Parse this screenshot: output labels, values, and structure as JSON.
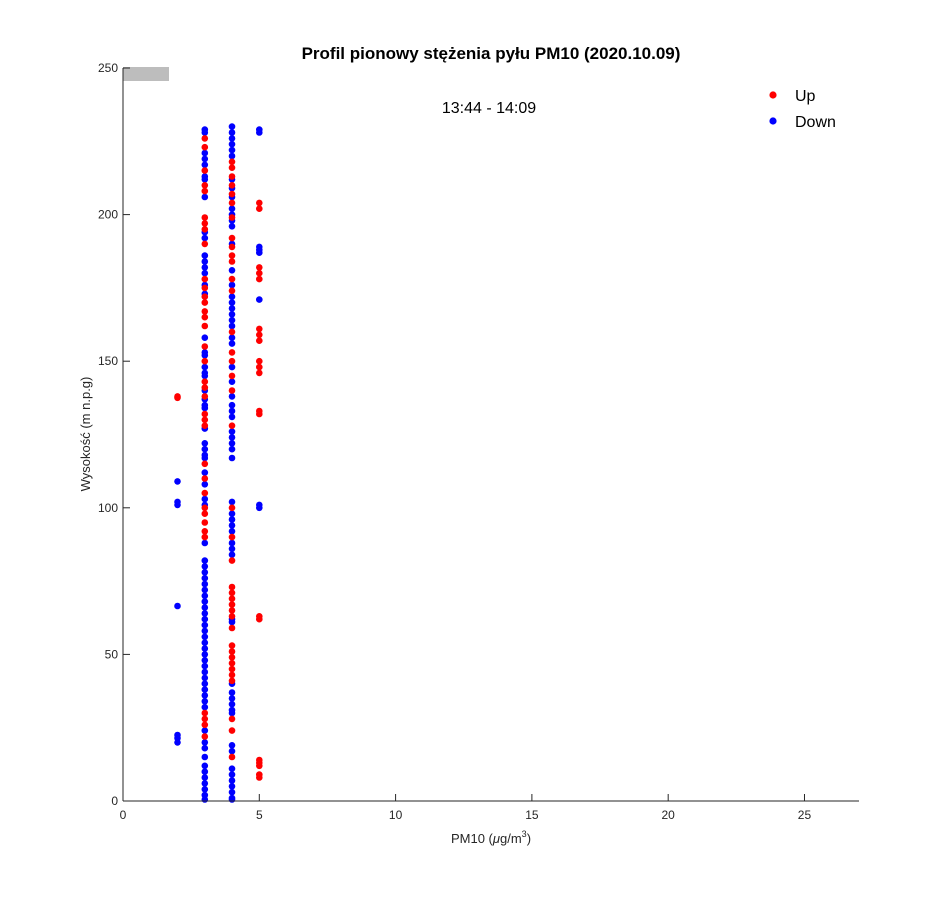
{
  "chart_data": {
    "type": "scatter",
    "title": "Profil pionowy stężenia pyłu PM10 (2020.10.09)",
    "xlabel": "PM10 (",
    "xlabel_mu": "μ",
    "xlabel_unit": "g/m",
    "xlabel_exp": "3",
    "xlabel_close": ")",
    "ylabel": "Wysokość (m n.p.g)",
    "xlim": [
      0,
      27
    ],
    "ylim": [
      0,
      250
    ],
    "xticks": [
      0,
      5,
      10,
      15,
      20,
      25
    ],
    "yticks": [
      0,
      50,
      100,
      150,
      200,
      250
    ],
    "grid": false,
    "legend_position": "top-right",
    "annotation": "13:44 - 14:09",
    "series": [
      {
        "name": "Up",
        "color": "#ff0000",
        "points": [
          [
            2,
            138
          ],
          [
            2,
            137.5
          ],
          [
            3,
            226
          ],
          [
            3,
            223
          ],
          [
            3,
            215
          ],
          [
            3,
            210
          ],
          [
            3,
            208
          ],
          [
            3,
            199
          ],
          [
            3,
            197
          ],
          [
            3,
            195
          ],
          [
            3,
            190
          ],
          [
            3,
            178
          ],
          [
            3,
            175
          ],
          [
            3,
            172
          ],
          [
            3,
            170
          ],
          [
            3,
            167
          ],
          [
            3,
            165
          ],
          [
            3,
            162
          ],
          [
            3,
            155
          ],
          [
            3,
            150
          ],
          [
            3,
            143
          ],
          [
            3,
            141
          ],
          [
            3,
            138
          ],
          [
            3,
            132
          ],
          [
            3,
            130
          ],
          [
            3,
            128
          ],
          [
            3,
            115
          ],
          [
            3,
            110
          ],
          [
            3,
            105
          ],
          [
            3,
            100
          ],
          [
            3,
            98
          ],
          [
            3,
            95
          ],
          [
            3,
            92
          ],
          [
            3,
            90
          ],
          [
            3,
            30
          ],
          [
            3,
            28
          ],
          [
            3,
            26
          ],
          [
            3,
            22
          ],
          [
            4,
            218
          ],
          [
            4,
            216
          ],
          [
            4,
            213
          ],
          [
            4,
            210
          ],
          [
            4,
            207
          ],
          [
            4,
            204
          ],
          [
            4,
            199
          ],
          [
            4,
            192
          ],
          [
            4,
            189
          ],
          [
            4,
            186
          ],
          [
            4,
            184
          ],
          [
            4,
            178
          ],
          [
            4,
            174
          ],
          [
            4,
            160
          ],
          [
            4,
            153
          ],
          [
            4,
            150
          ],
          [
            4,
            145
          ],
          [
            4,
            140
          ],
          [
            4,
            128
          ],
          [
            4,
            100
          ],
          [
            4,
            90
          ],
          [
            4,
            82
          ],
          [
            4,
            73
          ],
          [
            4,
            71
          ],
          [
            4,
            69
          ],
          [
            4,
            67
          ],
          [
            4,
            65
          ],
          [
            4,
            63
          ],
          [
            4,
            59
          ],
          [
            4,
            53
          ],
          [
            4,
            51
          ],
          [
            4,
            49
          ],
          [
            4,
            47
          ],
          [
            4,
            45
          ],
          [
            4,
            43
          ],
          [
            4,
            41
          ],
          [
            4,
            28
          ],
          [
            4,
            24
          ],
          [
            4,
            15
          ],
          [
            5,
            204
          ],
          [
            5,
            202
          ],
          [
            5,
            182
          ],
          [
            5,
            180
          ],
          [
            5,
            178
          ],
          [
            5,
            161
          ],
          [
            5,
            159
          ],
          [
            5,
            157
          ],
          [
            5,
            150
          ],
          [
            5,
            148
          ],
          [
            5,
            146
          ],
          [
            5,
            133
          ],
          [
            5,
            132
          ],
          [
            5,
            63
          ],
          [
            5,
            62
          ],
          [
            5,
            14
          ],
          [
            5,
            13
          ],
          [
            5,
            12
          ],
          [
            5,
            9
          ],
          [
            5,
            8
          ]
        ]
      },
      {
        "name": "Down",
        "color": "#0000ff",
        "points": [
          [
            2,
            109
          ],
          [
            2,
            102
          ],
          [
            2,
            101
          ],
          [
            2,
            66.5
          ],
          [
            2,
            22.5
          ],
          [
            2,
            21.5
          ],
          [
            2,
            20
          ],
          [
            3,
            229
          ],
          [
            3,
            228
          ],
          [
            3,
            221
          ],
          [
            3,
            219
          ],
          [
            3,
            217
          ],
          [
            3,
            213
          ],
          [
            3,
            212
          ],
          [
            3,
            206
          ],
          [
            3,
            194
          ],
          [
            3,
            192
          ],
          [
            3,
            186
          ],
          [
            3,
            184
          ],
          [
            3,
            182
          ],
          [
            3,
            180
          ],
          [
            3,
            176
          ],
          [
            3,
            173
          ],
          [
            3,
            158
          ],
          [
            3,
            153
          ],
          [
            3,
            152
          ],
          [
            3,
            148
          ],
          [
            3,
            146
          ],
          [
            3,
            145
          ],
          [
            3,
            140
          ],
          [
            3,
            137
          ],
          [
            3,
            135
          ],
          [
            3,
            134
          ],
          [
            3,
            127
          ],
          [
            3,
            122
          ],
          [
            3,
            120
          ],
          [
            3,
            118
          ],
          [
            3,
            117
          ],
          [
            3,
            112
          ],
          [
            3,
            108
          ],
          [
            3,
            103
          ],
          [
            3,
            101
          ],
          [
            3,
            88
          ],
          [
            3,
            82
          ],
          [
            3,
            80
          ],
          [
            3,
            78
          ],
          [
            3,
            76
          ],
          [
            3,
            74
          ],
          [
            3,
            72
          ],
          [
            3,
            70
          ],
          [
            3,
            68
          ],
          [
            3,
            66
          ],
          [
            3,
            64
          ],
          [
            3,
            62
          ],
          [
            3,
            60
          ],
          [
            3,
            58
          ],
          [
            3,
            56
          ],
          [
            3,
            54
          ],
          [
            3,
            52
          ],
          [
            3,
            50
          ],
          [
            3,
            48
          ],
          [
            3,
            46
          ],
          [
            3,
            44
          ],
          [
            3,
            42
          ],
          [
            3,
            40
          ],
          [
            3,
            38
          ],
          [
            3,
            36
          ],
          [
            3,
            34
          ],
          [
            3,
            32
          ],
          [
            3,
            24
          ],
          [
            3,
            20
          ],
          [
            3,
            18
          ],
          [
            3,
            15
          ],
          [
            3,
            12
          ],
          [
            3,
            10
          ],
          [
            3,
            8
          ],
          [
            3,
            6
          ],
          [
            3,
            4
          ],
          [
            3,
            2
          ],
          [
            3,
            0.5
          ],
          [
            4,
            230
          ],
          [
            4,
            228
          ],
          [
            4,
            226
          ],
          [
            4,
            224
          ],
          [
            4,
            222
          ],
          [
            4,
            220
          ],
          [
            4,
            212
          ],
          [
            4,
            209
          ],
          [
            4,
            206
          ],
          [
            4,
            202
          ],
          [
            4,
            200
          ],
          [
            4,
            198
          ],
          [
            4,
            196
          ],
          [
            4,
            190
          ],
          [
            4,
            181
          ],
          [
            4,
            176
          ],
          [
            4,
            172
          ],
          [
            4,
            170
          ],
          [
            4,
            168
          ],
          [
            4,
            166
          ],
          [
            4,
            164
          ],
          [
            4,
            162
          ],
          [
            4,
            158
          ],
          [
            4,
            156
          ],
          [
            4,
            148
          ],
          [
            4,
            143
          ],
          [
            4,
            138
          ],
          [
            4,
            135
          ],
          [
            4,
            133
          ],
          [
            4,
            131
          ],
          [
            4,
            126
          ],
          [
            4,
            124
          ],
          [
            4,
            122
          ],
          [
            4,
            120
          ],
          [
            4,
            117
          ],
          [
            4,
            102
          ],
          [
            4,
            98
          ],
          [
            4,
            96
          ],
          [
            4,
            94
          ],
          [
            4,
            92
          ],
          [
            4,
            88
          ],
          [
            4,
            86
          ],
          [
            4,
            84
          ],
          [
            4,
            62
          ],
          [
            4,
            61
          ],
          [
            4,
            40
          ],
          [
            4,
            37
          ],
          [
            4,
            35
          ],
          [
            4,
            33
          ],
          [
            4,
            31
          ],
          [
            4,
            30
          ],
          [
            4,
            19
          ],
          [
            4,
            17
          ],
          [
            4,
            11
          ],
          [
            4,
            9
          ],
          [
            4,
            7
          ],
          [
            4,
            5
          ],
          [
            4,
            3
          ],
          [
            4,
            1
          ],
          [
            4,
            0.5
          ],
          [
            5,
            229
          ],
          [
            5,
            228
          ],
          [
            5,
            189
          ],
          [
            5,
            188
          ],
          [
            5,
            187
          ],
          [
            5,
            171
          ],
          [
            5,
            101
          ],
          [
            5,
            100
          ]
        ]
      }
    ]
  }
}
